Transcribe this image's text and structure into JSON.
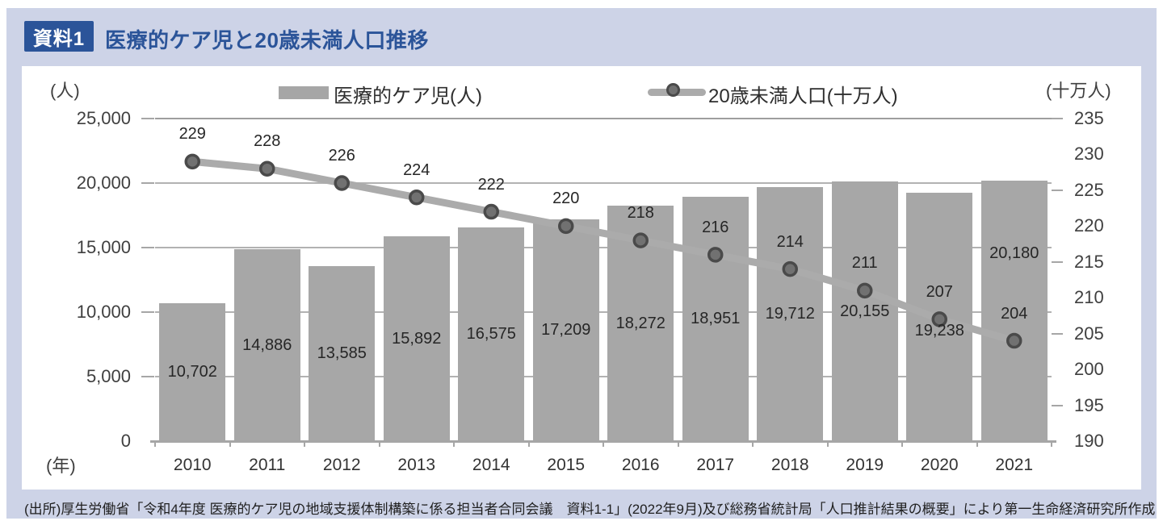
{
  "header": {
    "badge": "資料1",
    "title": "医療的ケア児と20歳未満人口推移"
  },
  "legend": {
    "bar_label": "医療的ケア児(人)",
    "line_label": "20歳未満人口(十万人)"
  },
  "footer": {
    "source": "(出所)厚生労働省「令和4年度 医療的ケア児の地域支援体制構築に係る担当者合同会議　資料1-1」(2022年9月)及び総務省統計局「人口推計結果の概要」により第一生命経済研究所作成"
  },
  "colors": {
    "banner_background": "#cdd3e7",
    "badge_blue": "#2b5499",
    "title_blue": "#2b5499",
    "bar_gray": "#a7a7a7",
    "line_gray": "#ababab",
    "marker_fill": "#717171",
    "marker_stroke": "#4a4a4a",
    "gridline": "#b2b2b2",
    "gridline_top": "#9e9e9e",
    "axis_line": "#a6a6a6",
    "label_text": "#262626"
  },
  "chart_data": {
    "type": "combo",
    "title": "医療的ケア児と20歳未満人口推移",
    "categories": [
      "2010",
      "2011",
      "2012",
      "2013",
      "2014",
      "2015",
      "2016",
      "2017",
      "2018",
      "2019",
      "2020",
      "2021"
    ],
    "series": [
      {
        "name": "医療的ケア児(人)",
        "type": "bar",
        "axis": "left",
        "values": [
          10702,
          14886,
          13585,
          15892,
          16575,
          17209,
          18272,
          18951,
          19712,
          20155,
          19238,
          20180
        ],
        "labels": [
          "10,702",
          "14,886",
          "13,585",
          "15,892",
          "16,575",
          "17,209",
          "18,272",
          "18,951",
          "19,712",
          "20,155",
          "19,238",
          "20,180"
        ]
      },
      {
        "name": "20歳未満人口(十万人)",
        "type": "line",
        "axis": "right",
        "values": [
          229,
          228,
          226,
          224,
          222,
          220,
          218,
          216,
          214,
          211,
          207,
          204
        ],
        "labels": [
          "229",
          "228",
          "226",
          "224",
          "222",
          "220",
          "218",
          "216",
          "214",
          "211",
          "207",
          "204"
        ]
      }
    ],
    "left_axis": {
      "unit": "(人)",
      "min": 0,
      "max": 25000,
      "step": 5000,
      "tick_labels": [
        "0",
        "5,000",
        "10,000",
        "15,000",
        "20,000",
        "25,000"
      ]
    },
    "right_axis": {
      "unit": "(十万人)",
      "min": 190,
      "max": 235,
      "step": 5,
      "tick_labels": [
        "190",
        "195",
        "200",
        "205",
        "210",
        "215",
        "220",
        "225",
        "230",
        "235"
      ]
    },
    "x_axis": {
      "unit": "(年)"
    },
    "legend_position": "top",
    "grid": true
  }
}
